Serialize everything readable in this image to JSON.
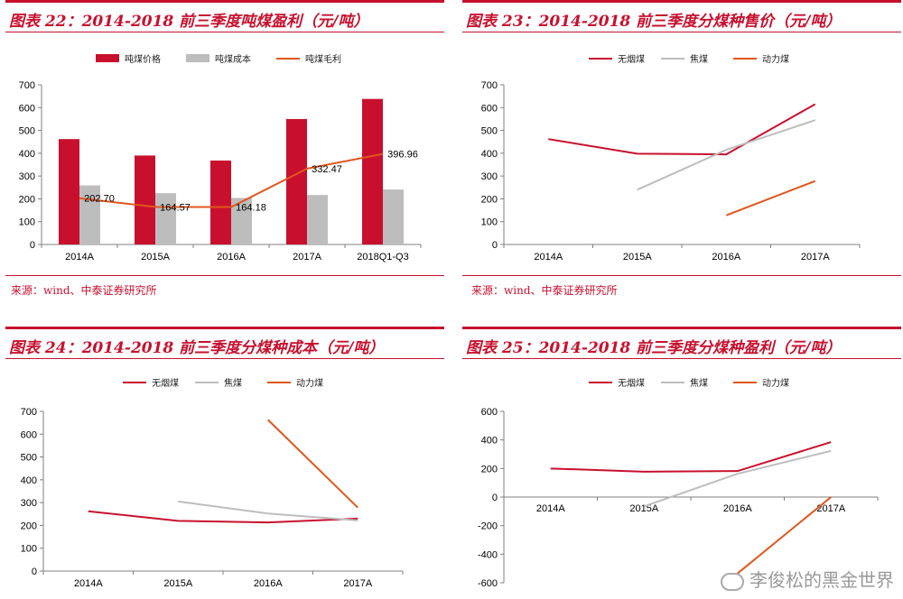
{
  "colors": {
    "accent": "#c8102e",
    "orange": "#e0561c",
    "gray": "#bdbdbd",
    "axis": "#7f7f7f"
  },
  "charts": [
    {
      "title": "图表 22：2014-2018 前三季度吨煤盈利（元/吨）"
    },
    {
      "title": "图表 23：2014-2018 前三季度分煤种售价（元/吨）"
    },
    {
      "title": "图表 24：2014-2018 前三季度分煤种成本（元/吨）"
    },
    {
      "title": "图表 25：2014-2018 前三季度分煤种盈利（元/吨）"
    }
  ],
  "sources": [
    "来源：wind、中泰证券研究所",
    "来源：wind、中泰证券研究所"
  ],
  "watermark": "李俊松的黑金世界",
  "chart_data": [
    {
      "type": "bar",
      "categories": [
        "2014A",
        "2015A",
        "2016A",
        "2017A",
        "2018Q1-Q3"
      ],
      "ylim": [
        0,
        700
      ],
      "yticks": [
        0,
        100,
        200,
        300,
        400,
        500,
        600,
        700
      ],
      "series": [
        {
          "name": "吨煤价格",
          "kind": "bar",
          "color": "#c8102e",
          "values": [
            462,
            390,
            368,
            550,
            638
          ]
        },
        {
          "name": "吨煤成本",
          "kind": "bar",
          "color": "#bdbdbd",
          "values": [
            259,
            225,
            204,
            217,
            241
          ]
        },
        {
          "name": "吨煤毛利",
          "kind": "line",
          "color": "#e0561c",
          "values": [
            202.7,
            164.57,
            164.18,
            332.47,
            396.96
          ],
          "labels": [
            "202.70",
            "164.57",
            "164.18",
            "332.47",
            "396.96"
          ]
        }
      ]
    },
    {
      "type": "line",
      "categories": [
        "2014A",
        "2015A",
        "2016A",
        "2017A"
      ],
      "ylim": [
        0,
        700
      ],
      "yticks": [
        0,
        100,
        200,
        300,
        400,
        500,
        600,
        700
      ],
      "series": [
        {
          "name": "无烟煤",
          "color": "#c8102e",
          "values": [
            462,
            398,
            395,
            615
          ]
        },
        {
          "name": "焦煤",
          "color": "#bdbdbd",
          "values": [
            null,
            240,
            415,
            545
          ]
        },
        {
          "name": "动力煤",
          "color": "#e0561c",
          "values": [
            null,
            null,
            128,
            278
          ]
        }
      ]
    },
    {
      "type": "line",
      "categories": [
        "2014A",
        "2015A",
        "2016A",
        "2017A"
      ],
      "ylim": [
        0,
        700
      ],
      "yticks": [
        0,
        100,
        200,
        300,
        400,
        500,
        600,
        700
      ],
      "series": [
        {
          "name": "无烟煤",
          "color": "#c8102e",
          "values": [
            262,
            220,
            213,
            230
          ]
        },
        {
          "name": "焦煤",
          "color": "#bdbdbd",
          "values": [
            null,
            305,
            252,
            222
          ]
        },
        {
          "name": "动力煤",
          "color": "#e0561c",
          "values": [
            null,
            null,
            663,
            278
          ]
        }
      ]
    },
    {
      "type": "line",
      "categories": [
        "2014A",
        "2015A",
        "2016A",
        "2017A"
      ],
      "ylim": [
        -600,
        600
      ],
      "yticks": [
        -600,
        -400,
        -200,
        0,
        200,
        400,
        600
      ],
      "series": [
        {
          "name": "无烟煤",
          "color": "#c8102e",
          "values": [
            200,
            178,
            182,
            385
          ]
        },
        {
          "name": "焦煤",
          "color": "#bdbdbd",
          "values": [
            null,
            -65,
            163,
            323
          ]
        },
        {
          "name": "动力煤",
          "color": "#e0561c",
          "values": [
            null,
            null,
            -535,
            0
          ]
        }
      ]
    }
  ]
}
